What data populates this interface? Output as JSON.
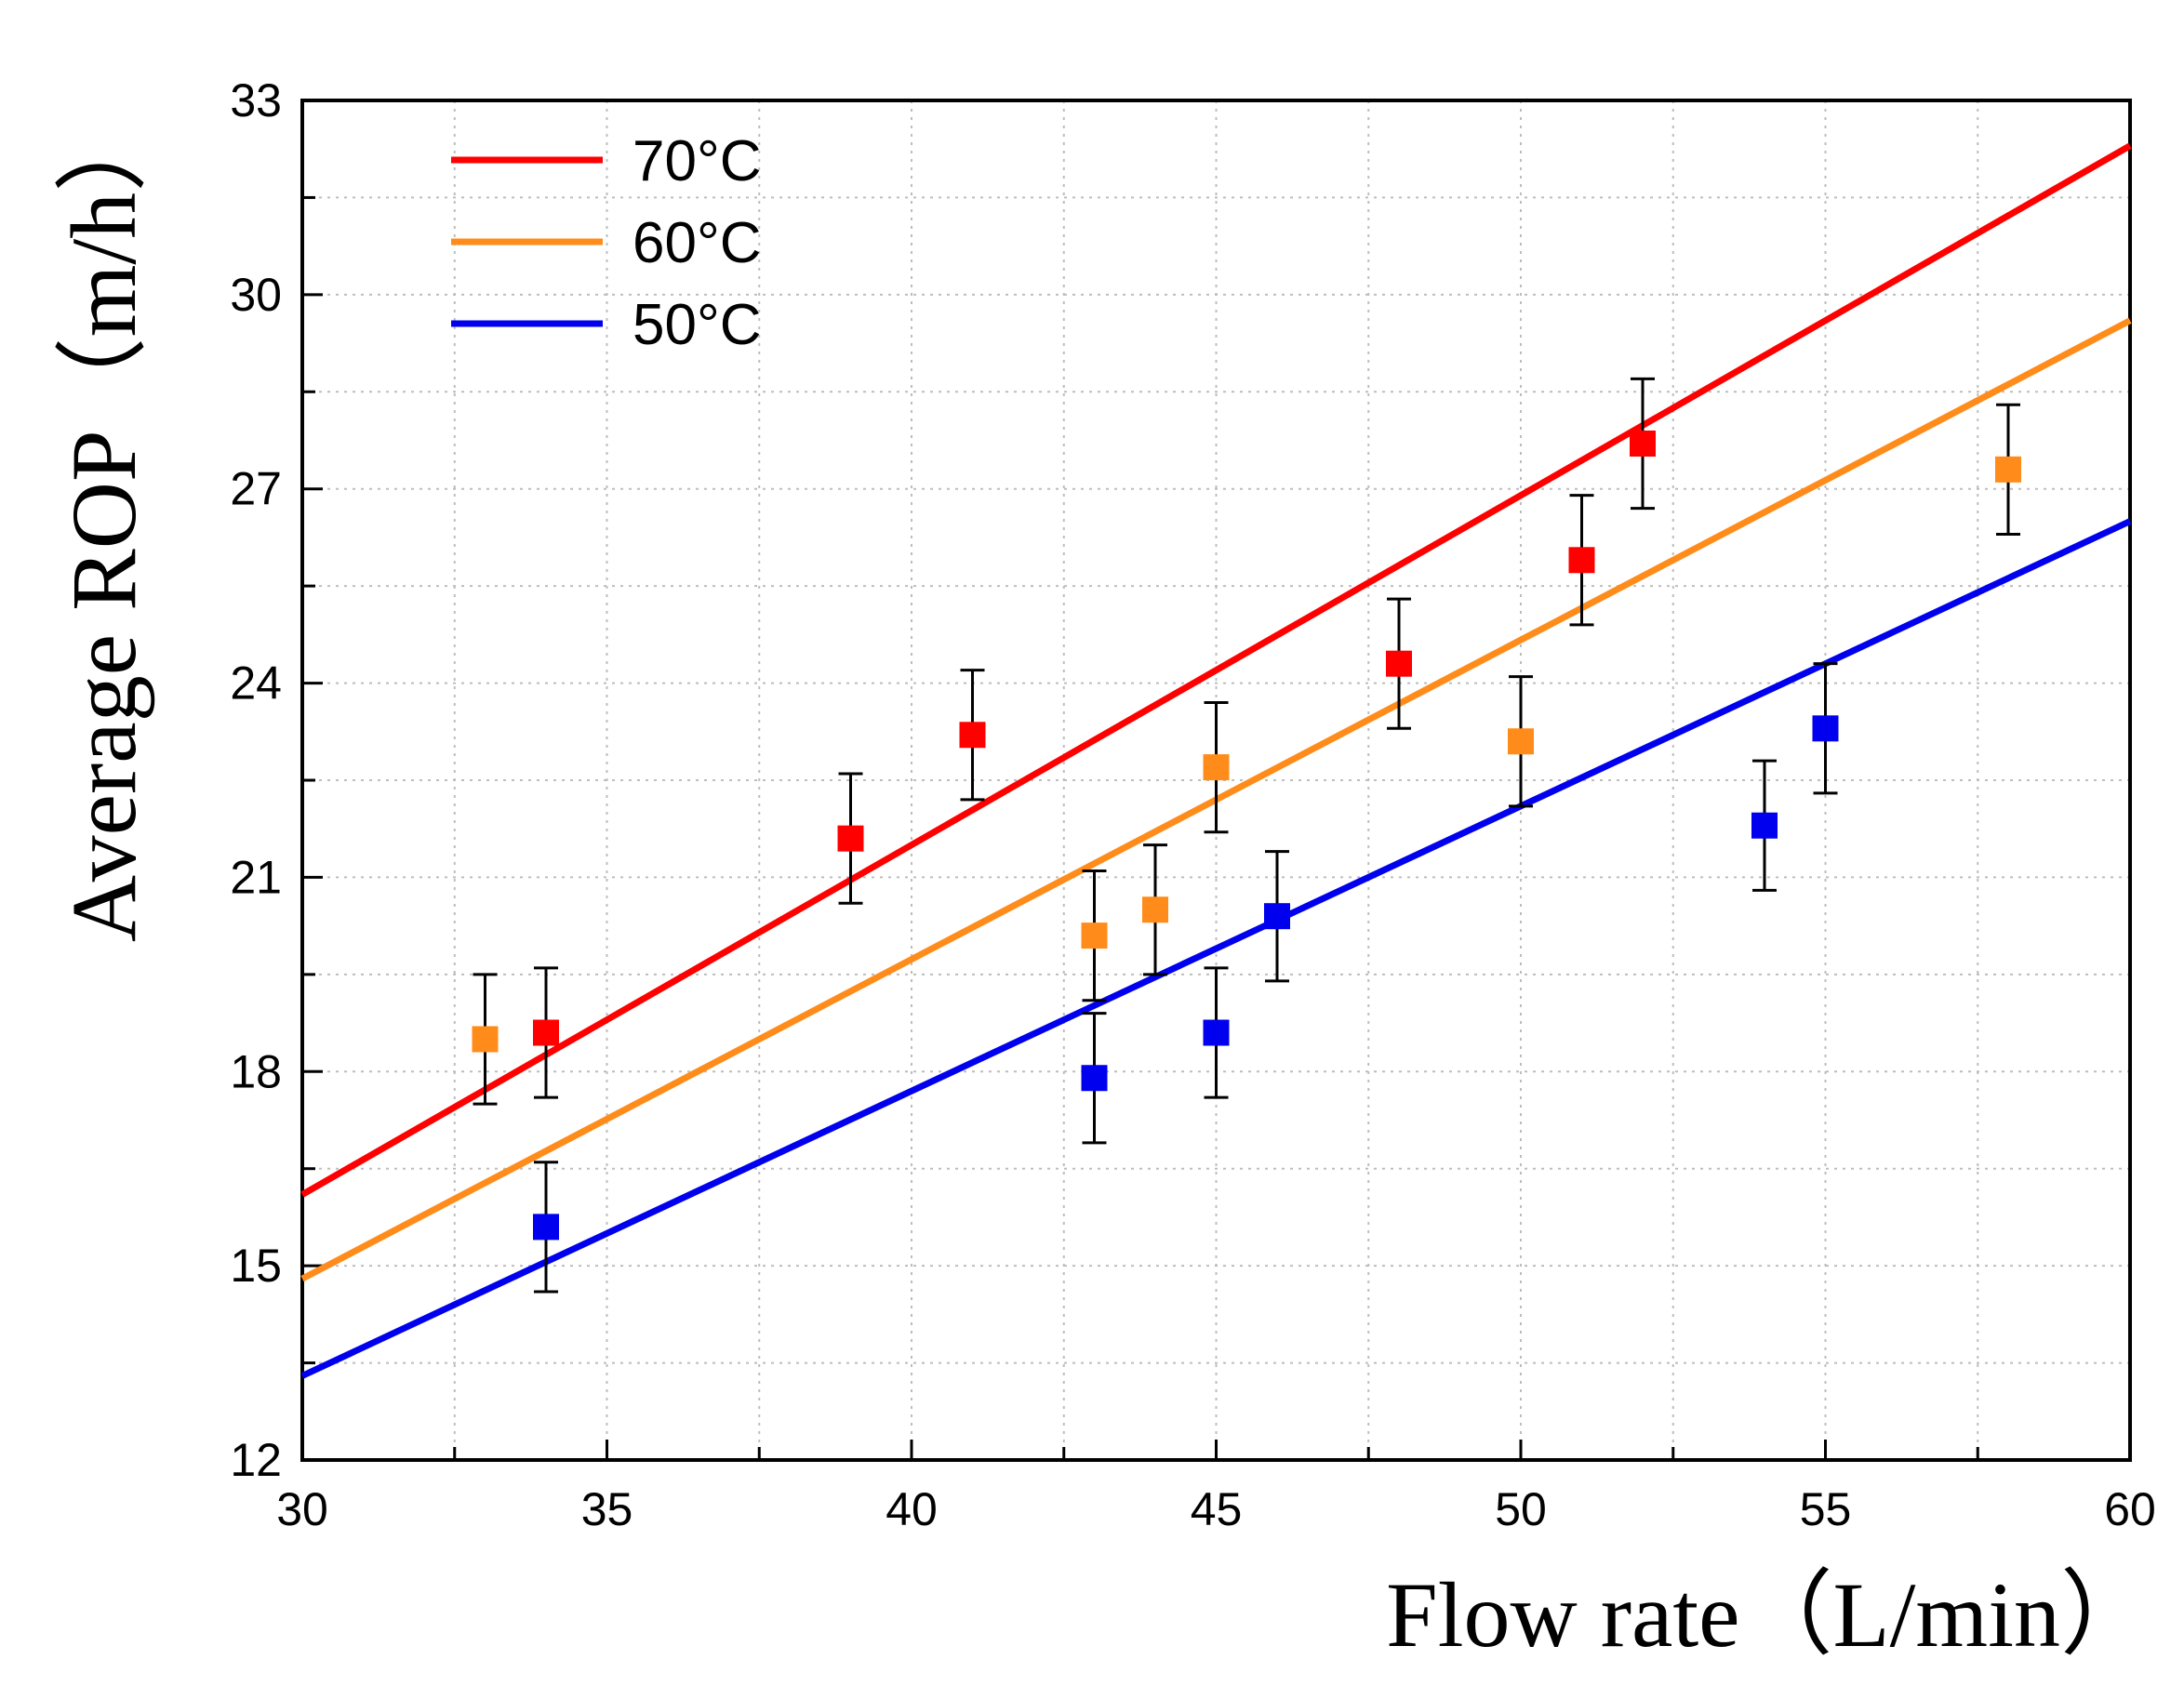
{
  "chart_data": {
    "type": "scatter",
    "title": "",
    "xlabel": "Flow rate（L/min）",
    "ylabel": "Average ROP（m/h）",
    "xlim": [
      30,
      60
    ],
    "ylim": [
      12,
      33
    ],
    "x_ticks": [
      "30",
      "35",
      "40",
      "45",
      "50",
      "55",
      "60"
    ],
    "y_ticks": [
      "12",
      "15",
      "18",
      "21",
      "24",
      "27",
      "30",
      "33"
    ],
    "grid": true,
    "legend_position": "top-left",
    "series": [
      {
        "name": "70°C",
        "color": "#ff0000",
        "fit_line": {
          "x": [
            30,
            60
          ],
          "y": [
            16.1,
            32.3
          ]
        },
        "points": [
          {
            "x": 34,
            "y": 18.6,
            "err": 1.0
          },
          {
            "x": 39,
            "y": 21.6,
            "err": 1.0
          },
          {
            "x": 41,
            "y": 23.2,
            "err": 1.0
          },
          {
            "x": 48,
            "y": 24.3,
            "err": 1.0
          },
          {
            "x": 51,
            "y": 25.9,
            "err": 1.0
          },
          {
            "x": 52,
            "y": 27.7,
            "err": 1.0
          }
        ]
      },
      {
        "name": "60°C",
        "color": "#ff8c1a",
        "fit_line": {
          "x": [
            30,
            60
          ],
          "y": [
            14.8,
            29.6
          ]
        },
        "points": [
          {
            "x": 33,
            "y": 18.5,
            "err": 1.0
          },
          {
            "x": 43,
            "y": 20.1,
            "err": 1.0
          },
          {
            "x": 44,
            "y": 20.5,
            "err": 1.0
          },
          {
            "x": 45,
            "y": 22.7,
            "err": 1.0
          },
          {
            "x": 50,
            "y": 23.1,
            "err": 1.0
          },
          {
            "x": 58,
            "y": 27.3,
            "err": 1.0
          }
        ]
      },
      {
        "name": "50°C",
        "color": "#0000ee",
        "fit_line": {
          "x": [
            30,
            60
          ],
          "y": [
            13.3,
            26.5
          ]
        },
        "points": [
          {
            "x": 34,
            "y": 15.6,
            "err": 1.0
          },
          {
            "x": 43,
            "y": 17.9,
            "err": 1.0
          },
          {
            "x": 45,
            "y": 18.6,
            "err": 1.0
          },
          {
            "x": 46,
            "y": 20.4,
            "err": 1.0
          },
          {
            "x": 54,
            "y": 21.8,
            "err": 1.0
          },
          {
            "x": 55,
            "y": 23.3,
            "err": 1.0
          }
        ]
      }
    ]
  }
}
